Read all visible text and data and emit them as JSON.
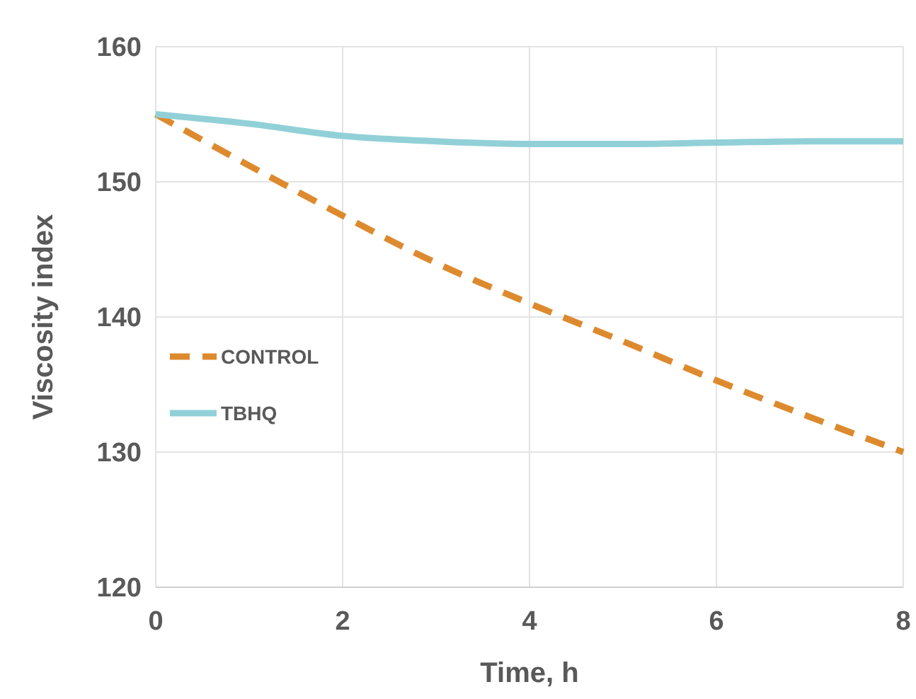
{
  "chart_data": {
    "type": "line",
    "xlabel": "Time, h",
    "ylabel": "Viscosity index",
    "x": [
      0,
      1,
      2,
      3,
      4,
      5,
      6,
      7,
      8
    ],
    "series": [
      {
        "name": "CONTROL",
        "color": "#dd8a2e",
        "line_style": "dashed",
        "values": [
          155,
          151.2,
          147.5,
          144,
          141,
          138.2,
          135.3,
          132.6,
          130
        ]
      },
      {
        "name": "TBHQ",
        "color": "#92d0d8",
        "line_style": "solid",
        "values": [
          155,
          154.3,
          153.4,
          153,
          152.8,
          152.8,
          152.9,
          153,
          153
        ]
      }
    ],
    "xlim": [
      0,
      8
    ],
    "xticks": [
      0,
      2,
      4,
      6,
      8
    ],
    "ylim": [
      120,
      160
    ],
    "yticks": [
      120,
      130,
      140,
      150,
      160
    ],
    "grid": true,
    "legend": "left",
    "marker": "none"
  }
}
